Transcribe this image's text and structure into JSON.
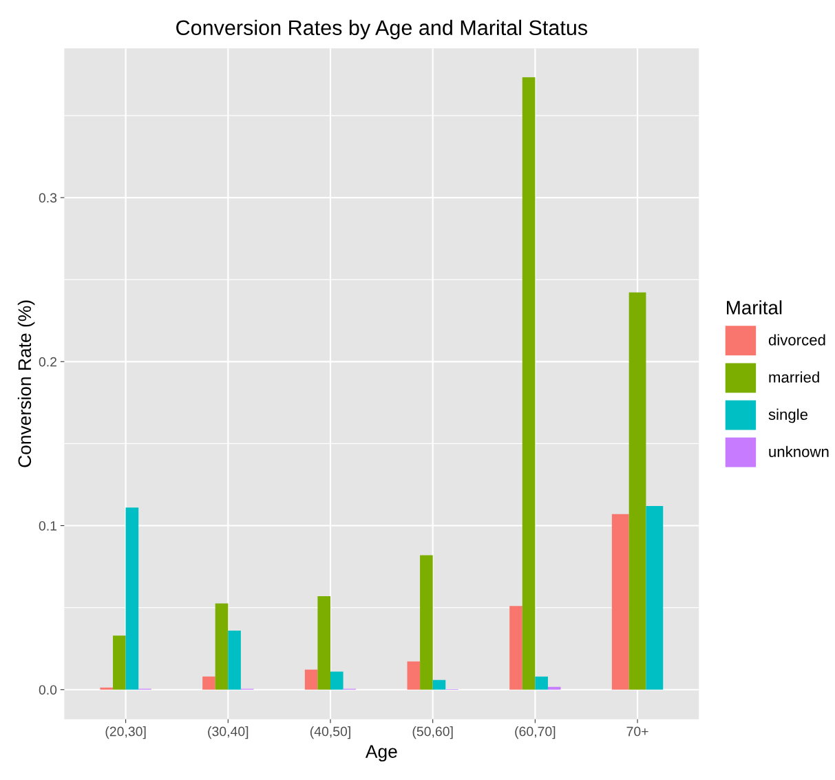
{
  "chart_data": {
    "type": "bar",
    "title": "Conversion Rates by Age and Marital Status",
    "xlabel": "Age",
    "ylabel": "Conversion Rate (%)",
    "legend_title": "Marital",
    "legend": "right",
    "grid": true,
    "categories": [
      "(20,30]",
      "(30,40]",
      "(40,50]",
      "(50,60]",
      "(60,70]",
      "70+"
    ],
    "ylim": [
      -0.018,
      0.391
    ],
    "yticks": [
      {
        "value": 0,
        "label": "0.0"
      },
      {
        "value": 0.1,
        "label": "0.1"
      },
      {
        "value": 0.2,
        "label": "0.2"
      },
      {
        "value": 0.3,
        "label": "0.3"
      }
    ],
    "series": [
      {
        "name": "divorced",
        "color": "#f8766d",
        "values": [
          0.0013,
          0.008,
          0.0122,
          0.0172,
          0.051,
          0.107
        ]
      },
      {
        "name": "married",
        "color": "#7cae00",
        "values": [
          0.033,
          0.0526,
          0.057,
          0.082,
          0.3734,
          0.2422
        ]
      },
      {
        "name": "single",
        "color": "#00bfc4",
        "values": [
          0.111,
          0.036,
          0.011,
          0.0059,
          0.008,
          0.112
        ]
      },
      {
        "name": "unknown",
        "color": "#c77cff",
        "values": [
          0.0005,
          0.0005,
          0.0005,
          0.0003,
          0.0017,
          null
        ]
      }
    ]
  }
}
